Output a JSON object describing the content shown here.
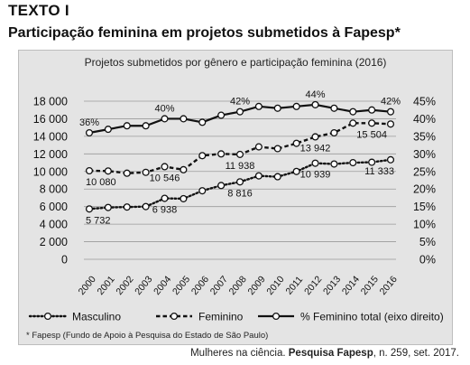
{
  "header": {
    "tag": "TEXTO I",
    "title": "Participação feminina em projetos submetidos à Fapesp*"
  },
  "footnote": "* Fapesp (Fundo de Apoio à Pesquisa do Estado de São Paulo)",
  "source": {
    "prefix": "Mulheres na ciência. ",
    "publication": "Pesquisa Fapesp",
    "suffix": ", n. 259, set. 2017."
  },
  "chart_data": {
    "type": "line",
    "title": "Projetos submetidos por gênero e participação feminina (2016)",
    "categories": [
      "2000",
      "2001",
      "2002",
      "2003",
      "2004",
      "2005",
      "2006",
      "2007",
      "2008",
      "2009",
      "2010",
      "2011",
      "2012",
      "2013",
      "2014",
      "2015",
      "2016"
    ],
    "ylim": [
      0,
      18000
    ],
    "yticks": [
      "18 000",
      "16 000",
      "14 000",
      "12 000",
      "10 000",
      "8 000",
      "6 000",
      "4 000",
      "2 000",
      "0"
    ],
    "y2lim": [
      0,
      45
    ],
    "y2ticks": [
      "45%",
      "40%",
      "35%",
      "30%",
      "25%",
      "20%",
      "15%",
      "10%",
      "5%",
      "0%"
    ],
    "grid": true,
    "legend": "bottom",
    "series": [
      {
        "name": "Masculino",
        "axis": "left",
        "style": "dotted",
        "values": [
          5732,
          5900,
          5950,
          6000,
          6938,
          6900,
          7800,
          8400,
          8816,
          9500,
          9400,
          10000,
          10939,
          10850,
          11000,
          11050,
          11333
        ]
      },
      {
        "name": "Feminino",
        "axis": "left",
        "style": "dashed",
        "values": [
          10080,
          10050,
          9800,
          9900,
          10546,
          10200,
          11800,
          12000,
          11938,
          12800,
          12600,
          13200,
          13942,
          14400,
          15500,
          15504,
          15400
        ]
      },
      {
        "name": "% Feminino total (eixo direito)",
        "axis": "right",
        "style": "solid",
        "values": [
          36,
          37,
          38,
          38,
          40,
          40,
          39,
          41,
          42,
          43.5,
          43,
          43.5,
          44,
          43,
          42,
          42.5,
          42
        ]
      }
    ],
    "annotations": [
      {
        "series": "Masculino",
        "x": "2000",
        "label": "5 732"
      },
      {
        "series": "Masculino",
        "x": "2004",
        "label": "6 938"
      },
      {
        "series": "Masculino",
        "x": "2008",
        "label": "8 816"
      },
      {
        "series": "Masculino",
        "x": "2012",
        "label": "10 939"
      },
      {
        "series": "Masculino",
        "x": "2016",
        "label": "11 333"
      },
      {
        "series": "Feminino",
        "x": "2000",
        "label": "10 080"
      },
      {
        "series": "Feminino",
        "x": "2004",
        "label": "10 546"
      },
      {
        "series": "Feminino",
        "x": "2008",
        "label": "11 938"
      },
      {
        "series": "Feminino",
        "x": "2012",
        "label": "13 942"
      },
      {
        "series": "Feminino",
        "x": "2015",
        "label": "15 504"
      },
      {
        "series": "% Feminino total (eixo direito)",
        "x": "2000",
        "label": "36%"
      },
      {
        "series": "% Feminino total (eixo direito)",
        "x": "2004",
        "label": "40%"
      },
      {
        "series": "% Feminino total (eixo direito)",
        "x": "2008",
        "label": "42%"
      },
      {
        "series": "% Feminino total (eixo direito)",
        "x": "2012",
        "label": "44%"
      },
      {
        "series": "% Feminino total (eixo direito)",
        "x": "2016",
        "label": "42%"
      }
    ]
  }
}
